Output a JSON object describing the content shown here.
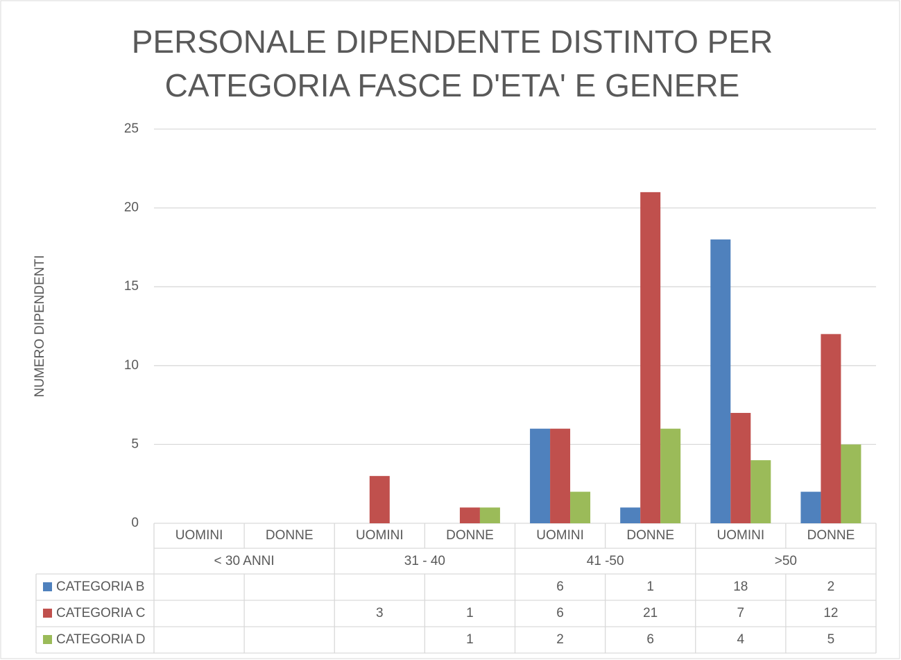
{
  "chart_data": {
    "type": "bar",
    "title": [
      "PERSONALE DIPENDENTE DISTINTO PER",
      "CATEGORIA FASCE D'ETA' E GENERE"
    ],
    "ylabel": "NUMERO DIPENDENTI",
    "categories": [
      "UOMINI",
      "DONNE",
      "UOMINI",
      "DONNE",
      "UOMINI",
      "DONNE",
      "UOMINI",
      "DONNE"
    ],
    "groups": [
      "< 30 ANNI",
      "31 - 40",
      "41 -50",
      ">50"
    ],
    "series": [
      {
        "name": "CATEGORIA B",
        "color": "#4f81bd",
        "values": [
          null,
          null,
          null,
          null,
          6,
          1,
          18,
          2
        ]
      },
      {
        "name": "CATEGORIA C",
        "color": "#c0504d",
        "values": [
          null,
          null,
          3,
          1,
          6,
          21,
          7,
          12
        ]
      },
      {
        "name": "CATEGORIA D",
        "color": "#9bbb59",
        "values": [
          null,
          null,
          null,
          1,
          2,
          6,
          4,
          5
        ]
      }
    ],
    "ylim": [
      0,
      25
    ],
    "yticks": [
      0,
      5,
      10,
      15,
      20,
      25
    ],
    "grid": true
  }
}
